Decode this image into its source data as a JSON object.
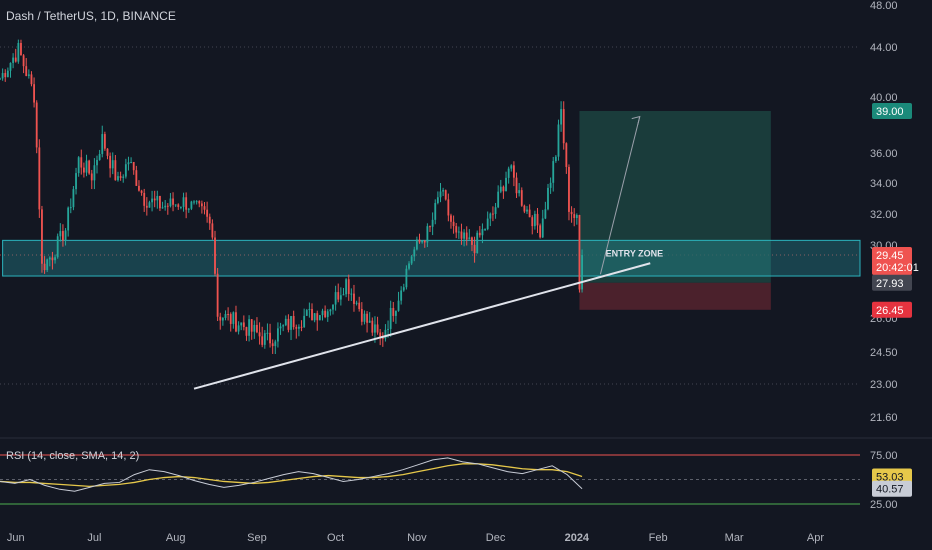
{
  "header": {
    "title": "Dash / TetherUS, 1D, BINANCE"
  },
  "price_scale": {
    "ticks": [
      "48.00",
      "44.00",
      "40.00",
      "36.00",
      "34.00",
      "32.00",
      "30.00",
      "26.00",
      "24.50",
      "23.00",
      "21.60"
    ],
    "tick_values": [
      48,
      44,
      40,
      36,
      34,
      32,
      30,
      26,
      24.5,
      23,
      21.6
    ]
  },
  "rsi_scale": {
    "ticks": [
      "75.00",
      "25.00"
    ],
    "tick_values": [
      75,
      25
    ]
  },
  "time_axis": {
    "labels": [
      "Jun",
      "Jul",
      "Aug",
      "Sep",
      "Oct",
      "Nov",
      "Dec",
      "2024",
      "Feb",
      "Mar",
      "Apr"
    ]
  },
  "badges": {
    "target": "39.00",
    "last_price": "29.45",
    "countdown": "20:42:01",
    "entry": "27.93",
    "stop": "26.45",
    "rsi_sma": "53.03",
    "rsi": "40.57"
  },
  "annotations": {
    "entry_zone": "ENTRY ZONE"
  },
  "rsi_panel": {
    "title": "RSI (14, close, SMA, 14, 2)"
  },
  "colors": {
    "background": "#131722",
    "up": "#26a69a",
    "down": "#ef5350",
    "zone": "#2bb3bd",
    "target_box": "#1e4a44",
    "stop_box": "#5a2430",
    "rsi_line": "#c8ccd6",
    "rsi_sma": "#e6c84a",
    "rsi_upper": "#ef5350",
    "rsi_lower": "#4caf50",
    "label_text": "#b2b5be"
  },
  "chart_data": {
    "type": "candlestick",
    "symbol": "Dash / TetherUS",
    "interval": "1D",
    "exchange": "BINANCE",
    "x_range": [
      "2023-05-26",
      "2024-04-18"
    ],
    "y_range": [
      21.0,
      48.5
    ],
    "keypoints": [
      {
        "date": "2023-05-26",
        "close": 41.5
      },
      {
        "date": "2023-06-02",
        "close": 43.8
      },
      {
        "date": "2023-06-08",
        "close": 40.2
      },
      {
        "date": "2023-06-11",
        "close": 28.8
      },
      {
        "date": "2023-06-15",
        "close": 29.5
      },
      {
        "date": "2023-06-20",
        "close": 31.0
      },
      {
        "date": "2023-06-25",
        "close": 35.5
      },
      {
        "date": "2023-06-30",
        "close": 34.5
      },
      {
        "date": "2023-07-04",
        "close": 37.0
      },
      {
        "date": "2023-07-10",
        "close": 34.0
      },
      {
        "date": "2023-07-14",
        "close": 35.5
      },
      {
        "date": "2023-07-20",
        "close": 33.0
      },
      {
        "date": "2023-07-27",
        "close": 32.5
      },
      {
        "date": "2023-08-04",
        "close": 32.8
      },
      {
        "date": "2023-08-12",
        "close": 32.0
      },
      {
        "date": "2023-08-15",
        "close": 31.0
      },
      {
        "date": "2023-08-17",
        "close": 26.2
      },
      {
        "date": "2023-08-25",
        "close": 25.8
      },
      {
        "date": "2023-09-05",
        "close": 25.0
      },
      {
        "date": "2023-09-15",
        "close": 25.9
      },
      {
        "date": "2023-09-28",
        "close": 26.5
      },
      {
        "date": "2023-10-05",
        "close": 28.0
      },
      {
        "date": "2023-10-12",
        "close": 26.0
      },
      {
        "date": "2023-10-18",
        "close": 25.0
      },
      {
        "date": "2023-10-24",
        "close": 26.8
      },
      {
        "date": "2023-10-30",
        "close": 29.5
      },
      {
        "date": "2023-11-06",
        "close": 31.0
      },
      {
        "date": "2023-11-10",
        "close": 33.5
      },
      {
        "date": "2023-11-16",
        "close": 30.5
      },
      {
        "date": "2023-11-23",
        "close": 30.0
      },
      {
        "date": "2023-11-30",
        "close": 32.0
      },
      {
        "date": "2023-12-06",
        "close": 35.0
      },
      {
        "date": "2023-12-12",
        "close": 32.5
      },
      {
        "date": "2023-12-18",
        "close": 31.0
      },
      {
        "date": "2023-12-24",
        "close": 36.0
      },
      {
        "date": "2023-12-26",
        "close": 39.0
      },
      {
        "date": "2023-12-29",
        "close": 32.5
      },
      {
        "date": "2024-01-01",
        "close": 31.5
      },
      {
        "date": "2024-01-02",
        "close": 27.5
      },
      {
        "date": "2024-01-03",
        "close": 29.45
      }
    ],
    "entry_zone": {
      "from": "2023-05-27",
      "to": "2024-04-18",
      "low": 28.3,
      "high": 30.3,
      "label": "ENTRY ZONE"
    },
    "trendline": {
      "from": {
        "date": "2023-08-08",
        "price": 22.8
      },
      "to": {
        "date": "2024-01-29",
        "price": 29.0
      }
    },
    "position": {
      "start": "2024-01-02",
      "end": "2024-03-15",
      "entry": 27.93,
      "target": 39.0,
      "stop": 26.45
    },
    "projection_arrow": {
      "from": {
        "date": "2024-01-10",
        "price": 28.4
      },
      "to": {
        "date": "2024-01-25",
        "price": 38.6
      }
    },
    "rsi": {
      "period": 14,
      "upper": 75,
      "lower": 25,
      "values": [
        48,
        46,
        50,
        44,
        40,
        38,
        42,
        46,
        47,
        55,
        60,
        58,
        54,
        49,
        45,
        42,
        44,
        47,
        51,
        55,
        58,
        56,
        52,
        48,
        50,
        53,
        56,
        60,
        65,
        70,
        72,
        68,
        66,
        62,
        58,
        56,
        60,
        64,
        55,
        40.57
      ],
      "sma": [
        48,
        47,
        47,
        46,
        45,
        44,
        43,
        44,
        45,
        47,
        50,
        52,
        53,
        52,
        50,
        48,
        47,
        46,
        47,
        49,
        51,
        53,
        54,
        53,
        52,
        52,
        53,
        55,
        58,
        61,
        64,
        66,
        66,
        65,
        63,
        61,
        60,
        60,
        58,
        53.03
      ]
    }
  }
}
